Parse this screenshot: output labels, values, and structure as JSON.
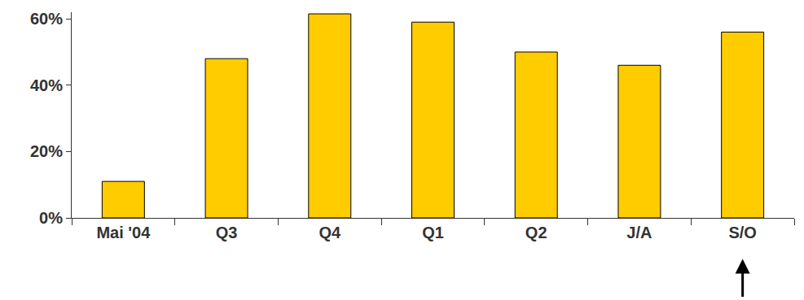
{
  "chart_data": {
    "type": "bar",
    "categories": [
      "Mai '04",
      "Q3",
      "Q4",
      "Q1",
      "Q2",
      "J/A",
      "S/O"
    ],
    "values": [
      11,
      48,
      61.5,
      59,
      50,
      46,
      56
    ],
    "color": "#ffcc00",
    "ylim": [
      0,
      62
    ],
    "yticks": [
      {
        "value": 0,
        "label": "0%"
      },
      {
        "value": 20,
        "label": "20%"
      },
      {
        "value": 40,
        "label": "40%"
      },
      {
        "value": 60,
        "label": "60%"
      }
    ],
    "grid": false
  }
}
